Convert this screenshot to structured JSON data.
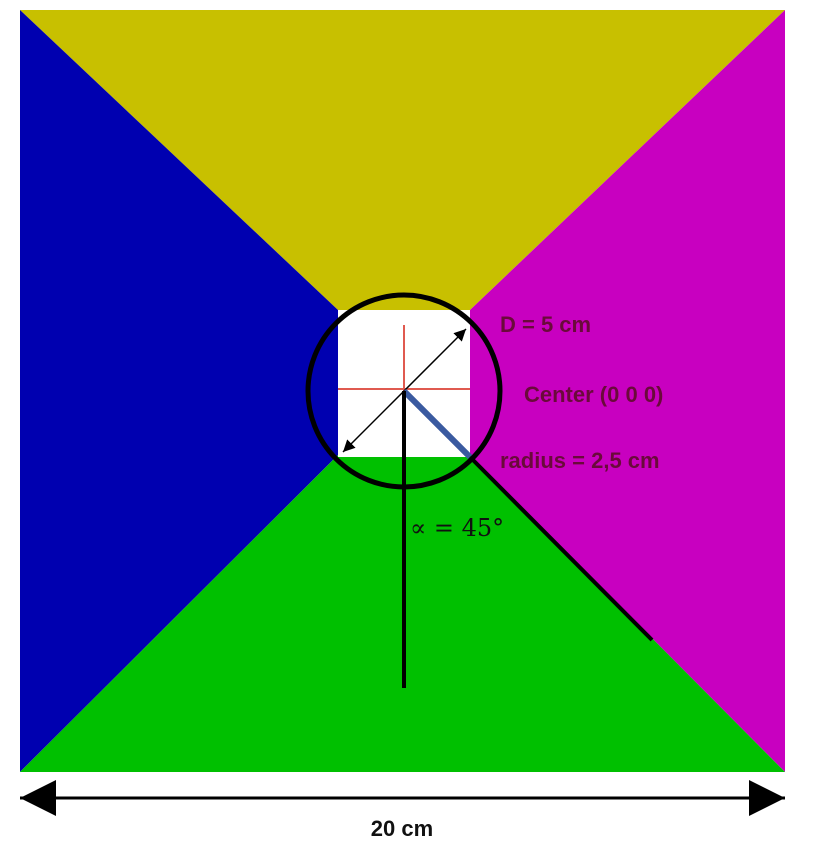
{
  "labels": {
    "diameter": "D = 5 cm",
    "center": "Center (0 0 0)",
    "radius": "radius = 2,5 cm",
    "angle": "∝ = 45°",
    "width": "20 cm"
  },
  "colors": {
    "top": "#c8c000",
    "left": "#0000b0",
    "right": "#c800c0",
    "bottom": "#00c000",
    "center_square": "#ffffff",
    "circle": "#000000",
    "cross_lines": "#e05a50",
    "radius_line": "#3a5aa0",
    "label_text": "#6a0a3a"
  },
  "icons": {
    "left_arrowhead": "arrowhead-left-icon",
    "right_arrowhead": "arrowhead-right-icon"
  }
}
